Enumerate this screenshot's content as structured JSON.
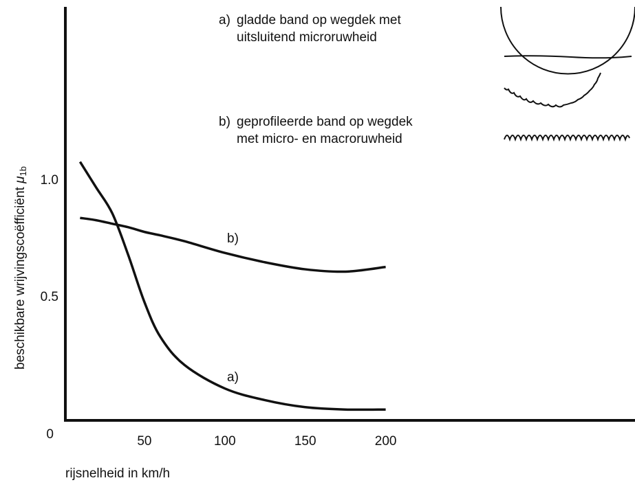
{
  "chart_data": {
    "type": "line",
    "x_label": "rijsnelheid in km/h",
    "y_label": "beschikbare wrijvingscoëfficiënt",
    "y_label_symbol": "μ",
    "y_label_subscript": "1b",
    "x": [
      10,
      20,
      30,
      40,
      50,
      60,
      75,
      100,
      125,
      150,
      175,
      200
    ],
    "series": [
      {
        "name": "a)",
        "color": "#111111",
        "description": [
          "gladde band op wegdek met",
          "uitsluitend microruwheid"
        ],
        "values": [
          1.08,
          0.97,
          0.86,
          0.68,
          0.48,
          0.33,
          0.21,
          0.11,
          0.06,
          0.03,
          0.02,
          0.02
        ]
      },
      {
        "name": "b)",
        "color": "#111111",
        "description": [
          "geprofileerde band op wegdek",
          "met micro- en macroruwheid"
        ],
        "values": [
          0.84,
          0.83,
          0.815,
          0.8,
          0.78,
          0.765,
          0.74,
          0.69,
          0.65,
          0.62,
          0.61,
          0.63
        ]
      }
    ],
    "xlim": [
      0,
      355
    ],
    "ylim": [
      0,
      1.74
    ],
    "xticks": [
      50,
      100,
      150,
      200
    ],
    "yticks": [
      0,
      0.5,
      {
        "value": 1,
        "label": "1.0"
      }
    ]
  }
}
